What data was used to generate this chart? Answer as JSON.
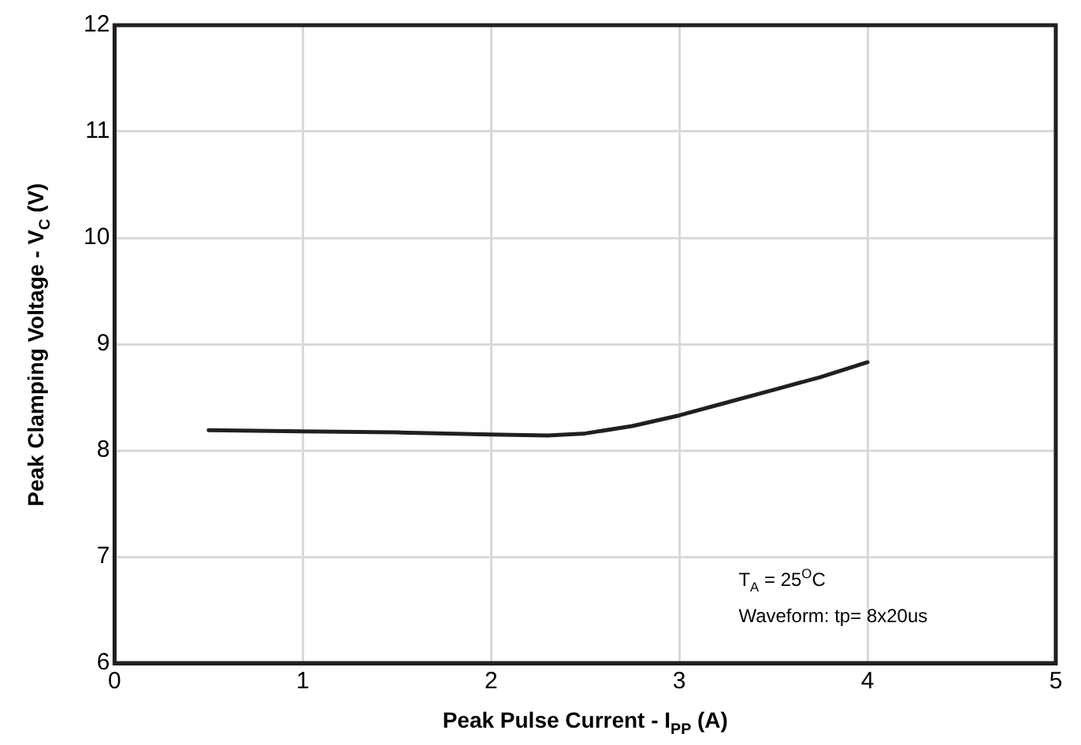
{
  "chart_data": {
    "type": "line",
    "xlabel": "Peak Pulse Current - I$_{PP}$ (A)",
    "ylabel": "Peak Clamping Voltage - V$_{C}$ (V)",
    "x": [
      0.5,
      1,
      1.5,
      2,
      2.3,
      2.5,
      2.75,
      3,
      3.25,
      3.5,
      3.75,
      4
    ],
    "series": [
      {
        "color": "#231f20",
        "values": [
          8.19,
          8.18,
          8.17,
          8.15,
          8.14,
          8.16,
          8.23,
          8.33,
          8.45,
          8.57,
          8.69,
          8.83
        ]
      }
    ],
    "xlim": [
      0,
      5
    ],
    "xticks": [
      0,
      1,
      2,
      3,
      4,
      5
    ],
    "ylim": [
      6,
      12
    ],
    "yticks": [
      6,
      7,
      8,
      9,
      10,
      11,
      12
    ],
    "grid": true,
    "legend": false,
    "marker": "none",
    "line_style": "solid",
    "annotations": [
      "T$_{A}$ = 25$^{O}$C",
      "Waveform: tp= 8x20us"
    ]
  }
}
